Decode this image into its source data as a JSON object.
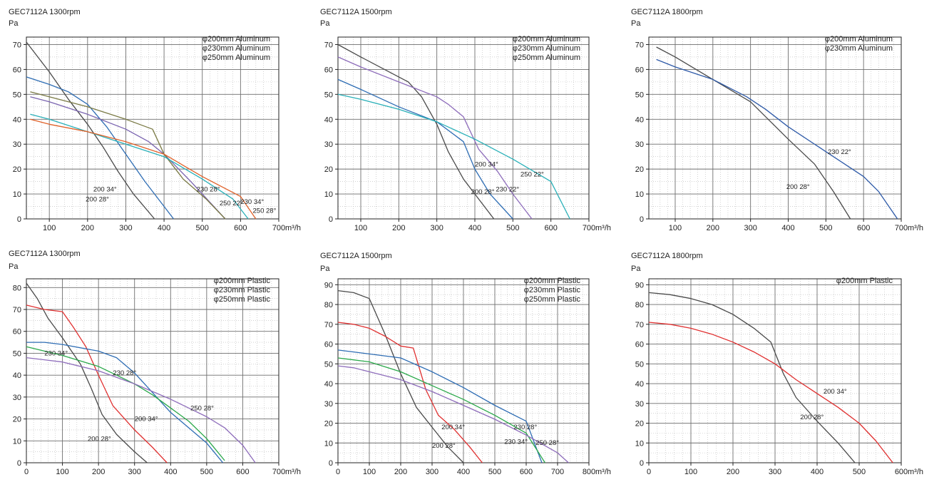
{
  "chart_data": [
    {
      "type": "line",
      "title": "GEC7112A 1300rpm",
      "ylabel": "Pa",
      "xunit": "m³/h",
      "xlim": [
        40,
        700
      ],
      "ylim": [
        0,
        73
      ],
      "xticks": [
        100,
        200,
        300,
        400,
        500,
        600,
        700
      ],
      "yticks": [
        0,
        10,
        20,
        30,
        40,
        50,
        60,
        70
      ],
      "legend": [
        "φ200mm Aluminum",
        "φ230mm Aluminum",
        "φ250mm Aluminum"
      ],
      "legend_position": "top-right",
      "series": [
        {
          "name": "200 28°",
          "color": "#4a4a4a",
          "x": [
            40,
            100,
            150,
            200,
            240,
            280,
            320,
            375
          ],
          "y": [
            71,
            59,
            48,
            38,
            29,
            19,
            10,
            0
          ]
        },
        {
          "name": "200 34°",
          "color": "#2e6db4",
          "x": [
            40,
            100,
            150,
            200,
            250,
            300,
            350,
            400,
            425
          ],
          "y": [
            57,
            54,
            51,
            46,
            37,
            26,
            15,
            5,
            0
          ]
        },
        {
          "name": "230 28°",
          "color": "#7a64b0",
          "x": [
            50,
            100,
            200,
            300,
            360,
            400,
            470,
            560
          ],
          "y": [
            49,
            47,
            42,
            36,
            31,
            26,
            15,
            0
          ]
        },
        {
          "name": "250 22°",
          "color": "#7a7a45",
          "x": [
            50,
            100,
            200,
            300,
            370,
            400,
            450,
            510,
            560
          ],
          "y": [
            51,
            49,
            45,
            40,
            36,
            26,
            16,
            8,
            0
          ]
        },
        {
          "name": "230 34°",
          "color": "#2ab0b8",
          "x": [
            50,
            100,
            200,
            300,
            400,
            500,
            580,
            620
          ],
          "y": [
            42,
            40,
            35,
            30,
            25,
            16,
            8,
            0
          ]
        },
        {
          "name": "250 28°",
          "color": "#e0622a",
          "x": [
            50,
            100,
            200,
            300,
            400,
            500,
            600,
            640
          ],
          "y": [
            40,
            38,
            35,
            31,
            26,
            17,
            9,
            0
          ]
        }
      ]
    },
    {
      "type": "line",
      "title": "GEC7112A 1500rpm",
      "ylabel": "Pa",
      "xunit": "m³/h",
      "xlim": [
        40,
        700
      ],
      "ylim": [
        0,
        73
      ],
      "xticks": [
        100,
        200,
        300,
        400,
        500,
        600,
        700
      ],
      "yticks": [
        0,
        10,
        20,
        30,
        40,
        50,
        60,
        70
      ],
      "legend": [
        "φ200mm Aluminum",
        "φ230mm Aluminum",
        "φ250mm Aluminum"
      ],
      "legend_position": "top-right",
      "series": [
        {
          "name": "200 28°",
          "color": "#4a4a4a",
          "x": [
            40,
            100,
            200,
            225,
            260,
            300,
            330,
            370,
            400,
            450
          ],
          "y": [
            70,
            65,
            57,
            55,
            49,
            38,
            27,
            16,
            10,
            0
          ]
        },
        {
          "name": "200 34°",
          "color": "#2e6db4",
          "x": [
            40,
            100,
            200,
            300,
            370,
            400,
            440,
            500
          ],
          "y": [
            56,
            52,
            45,
            39,
            31,
            20,
            10,
            0
          ]
        },
        {
          "name": "230 22°",
          "color": "#8e6dbb",
          "x": [
            40,
            100,
            200,
            300,
            330,
            370,
            410,
            460,
            500,
            550
          ],
          "y": [
            65,
            61,
            55,
            49,
            46,
            41,
            28,
            19,
            10,
            0
          ]
        },
        {
          "name": "250 22°",
          "color": "#2ab0b8",
          "x": [
            40,
            100,
            200,
            300,
            400,
            500,
            600,
            650
          ],
          "y": [
            50,
            48,
            44,
            39,
            32,
            24,
            15,
            0
          ]
        }
      ]
    },
    {
      "type": "line",
      "title": "GEC7112A 1800rpm",
      "ylabel": "Pa",
      "xunit": "m³/h",
      "xlim": [
        30,
        700
      ],
      "ylim": [
        0,
        73
      ],
      "xticks": [
        100,
        200,
        300,
        400,
        500,
        600,
        700
      ],
      "yticks": [
        0,
        10,
        20,
        30,
        40,
        50,
        60,
        70
      ],
      "legend": [
        "φ200mm Aluminum",
        "φ230mm Aluminum"
      ],
      "legend_position": "top-right",
      "series": [
        {
          "name": "200 28°",
          "color": "#4a4a4a",
          "x": [
            50,
            100,
            200,
            300,
            400,
            470,
            520,
            565
          ],
          "y": [
            69,
            65,
            56,
            47,
            32,
            22,
            11,
            0
          ]
        },
        {
          "name": "230 22°",
          "color": "#2e5aa8",
          "x": [
            50,
            100,
            200,
            290,
            340,
            400,
            500,
            600,
            640,
            690
          ],
          "y": [
            64,
            61,
            56,
            49,
            44,
            37,
            27,
            17,
            11,
            0
          ]
        }
      ]
    },
    {
      "type": "line",
      "title": "GEC7112A 1300rpm",
      "ylabel": "Pa",
      "xunit": "m³/h",
      "xlim": [
        0,
        700
      ],
      "ylim": [
        0,
        84
      ],
      "xticks": [
        0,
        100,
        200,
        300,
        400,
        500,
        600,
        700
      ],
      "yticks": [
        0,
        10,
        20,
        30,
        40,
        50,
        60,
        70,
        80
      ],
      "legend": [
        "φ200mm Plastic",
        "φ230mm Plastic",
        "φ250mm Plastic"
      ],
      "legend_position": "top-right",
      "series": [
        {
          "name": "200 28°",
          "color": "#4a4a4a",
          "x": [
            0,
            30,
            60,
            100,
            150,
            180,
            210,
            250,
            300,
            335
          ],
          "y": [
            82,
            75,
            66,
            57,
            45,
            34,
            22,
            13,
            5,
            0
          ]
        },
        {
          "name": "200 34°",
          "color": "#e03030",
          "x": [
            0,
            50,
            100,
            130,
            165,
            200,
            240,
            300,
            350,
            390
          ],
          "y": [
            72,
            70,
            69,
            62,
            53,
            40,
            26,
            15,
            7,
            0
          ]
        },
        {
          "name": "230 28°",
          "color": "#2e6db4",
          "x": [
            0,
            50,
            100,
            200,
            250,
            300,
            350,
            400,
            450,
            500,
            545
          ],
          "y": [
            55,
            55,
            54,
            51,
            48,
            41,
            32,
            23,
            16,
            9,
            0
          ]
        },
        {
          "name": "230 34°",
          "color": "#2aa84a",
          "x": [
            0,
            50,
            100,
            200,
            250,
            300,
            350,
            400,
            450,
            500,
            550
          ],
          "y": [
            53,
            51,
            49,
            44,
            40,
            36,
            31,
            25,
            19,
            11,
            1
          ]
        },
        {
          "name": "250 28°",
          "color": "#8e6dbb",
          "x": [
            0,
            50,
            100,
            200,
            300,
            400,
            500,
            550,
            600,
            635
          ],
          "y": [
            48,
            47,
            46,
            42,
            36,
            29,
            21,
            16,
            8,
            0
          ]
        }
      ]
    },
    {
      "type": "line",
      "title": "GEC7112A 1500rpm",
      "ylabel": "Pa",
      "xunit": "m³/h",
      "xlim": [
        0,
        800
      ],
      "ylim": [
        0,
        93
      ],
      "xticks": [
        0,
        100,
        200,
        300,
        400,
        500,
        600,
        700,
        800
      ],
      "yticks": [
        0,
        10,
        20,
        30,
        40,
        50,
        60,
        70,
        80,
        90
      ],
      "legend": [
        "φ200mm Plastic",
        "φ230mm Plastic",
        "φ250mm Plastic"
      ],
      "legend_position": "top-right",
      "series": [
        {
          "name": "200 28°",
          "color": "#4a4a4a",
          "x": [
            0,
            50,
            100,
            150,
            200,
            250,
            300,
            350,
            400
          ],
          "y": [
            87,
            86,
            83,
            65,
            45,
            28,
            18,
            8,
            0
          ]
        },
        {
          "name": "200 34°",
          "color": "#e03030",
          "x": [
            0,
            50,
            100,
            150,
            200,
            240,
            280,
            320,
            370,
            420,
            460
          ],
          "y": [
            71,
            70,
            68,
            64,
            59,
            58,
            37,
            24,
            17,
            8,
            0
          ]
        },
        {
          "name": "230 28°",
          "color": "#2e6db4",
          "x": [
            0,
            50,
            100,
            200,
            300,
            400,
            500,
            600,
            650
          ],
          "y": [
            57,
            56,
            55,
            53,
            46,
            38,
            29,
            21,
            0
          ]
        },
        {
          "name": "230 34°",
          "color": "#2aa84a",
          "x": [
            0,
            50,
            100,
            200,
            300,
            400,
            500,
            600,
            660
          ],
          "y": [
            53,
            52,
            51,
            46,
            39,
            32,
            24,
            15,
            0
          ]
        },
        {
          "name": "250 28°",
          "color": "#8e6dbb",
          "x": [
            0,
            50,
            100,
            200,
            300,
            400,
            500,
            600,
            700,
            735
          ],
          "y": [
            49,
            48,
            46,
            42,
            36,
            29,
            22,
            14,
            5,
            0
          ]
        }
      ]
    },
    {
      "type": "line",
      "title": "GEC7112A 1800rpm",
      "ylabel": "Pa",
      "xunit": "m³/h",
      "xlim": [
        0,
        600
      ],
      "ylim": [
        0,
        93
      ],
      "xticks": [
        0,
        100,
        200,
        300,
        400,
        500,
        600
      ],
      "yticks": [
        0,
        10,
        20,
        30,
        40,
        50,
        60,
        70,
        80,
        90
      ],
      "legend": [
        "φ200mm Plastic"
      ],
      "legend_position": "top-right",
      "series": [
        {
          "name": "200 28°",
          "color": "#4a4a4a",
          "x": [
            0,
            50,
            100,
            150,
            200,
            250,
            290,
            320,
            350,
            400,
            450,
            490
          ],
          "y": [
            86,
            85,
            83,
            80,
            75,
            68,
            61,
            45,
            33,
            21,
            10,
            0
          ]
        },
        {
          "name": "200 34°",
          "color": "#e03030",
          "x": [
            0,
            50,
            100,
            150,
            200,
            250,
            300,
            350,
            400,
            450,
            500,
            540,
            580
          ],
          "y": [
            71,
            70,
            68,
            65,
            61,
            56,
            50,
            42,
            35,
            28,
            20,
            11,
            0
          ]
        }
      ]
    }
  ]
}
